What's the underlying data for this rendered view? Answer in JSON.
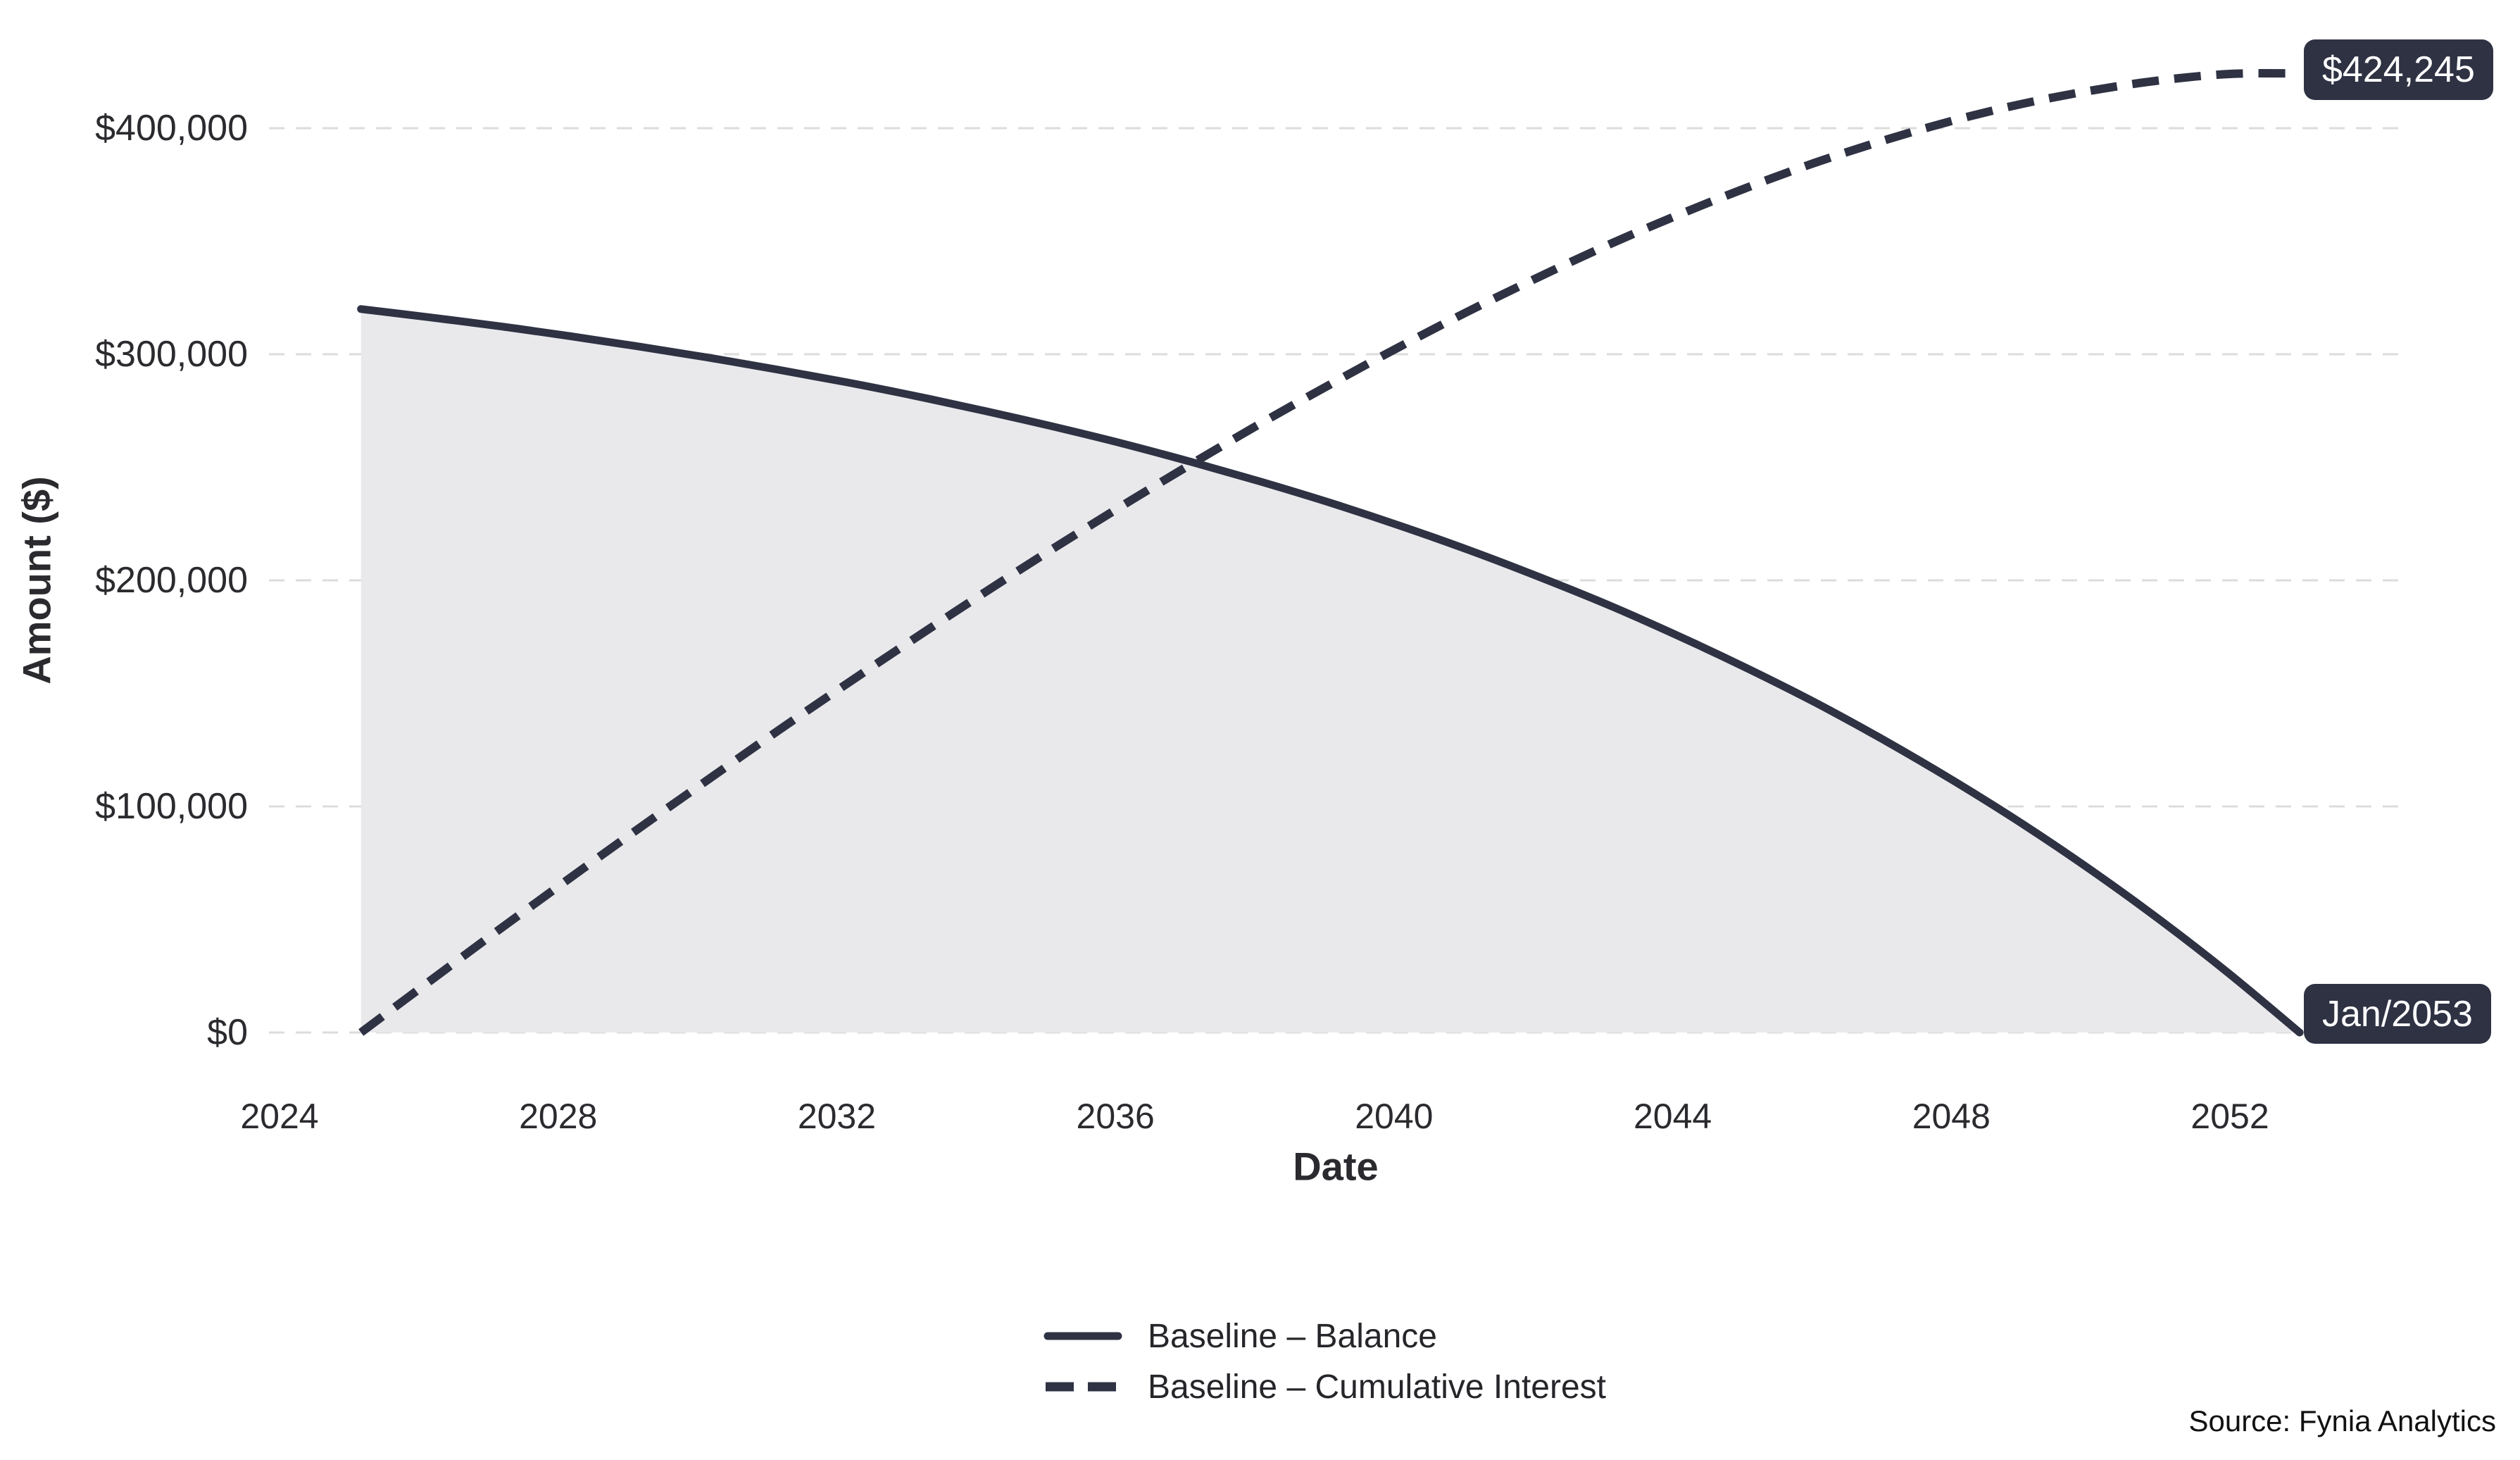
{
  "chart_data": {
    "type": "line",
    "title": "",
    "xlabel": "Date",
    "ylabel": "Amount ($)",
    "grid": "horizontal-dashed",
    "legend_position": "bottom-center",
    "x_ticks": [
      {
        "label": "2024",
        "year": 2024
      },
      {
        "label": "2028",
        "year": 2028
      },
      {
        "label": "2032",
        "year": 2032
      },
      {
        "label": "2036",
        "year": 2036
      },
      {
        "label": "2040",
        "year": 2040
      },
      {
        "label": "2044",
        "year": 2044
      },
      {
        "label": "2048",
        "year": 2048
      },
      {
        "label": "2052",
        "year": 2052
      }
    ],
    "y_ticks": [
      {
        "label": "$0",
        "value": 0
      },
      {
        "label": "$100,000",
        "value": 100000
      },
      {
        "label": "$200,000",
        "value": 200000
      },
      {
        "label": "$300,000",
        "value": 300000
      },
      {
        "label": "$400,000",
        "value": 400000
      }
    ],
    "y_range": [
      0,
      430000
    ],
    "x_range_years": [
      2023.8,
      2054.6
    ],
    "series": [
      {
        "name": "Baseline – Balance",
        "line_style": "solid",
        "area_fill": true,
        "x_start_year": 2025.17,
        "x_end_year": 2053.0,
        "values": [
          320000,
          316300,
          312400,
          308100,
          303500,
          298600,
          293300,
          287700,
          281600,
          275000,
          268000,
          260500,
          252300,
          243600,
          234300,
          224200,
          213400,
          201700,
          189300,
          175800,
          161400,
          146000,
          129300,
          111400,
          92200,
          71600,
          49400,
          25600,
          0
        ]
      },
      {
        "name": "Baseline – Cumulative Interest",
        "line_style": "dashed",
        "area_fill": false,
        "x_start_year": 2025.17,
        "x_end_year": 2053.0,
        "values": [
          0,
          22900,
          45600,
          67900,
          90000,
          111600,
          133000,
          153900,
          174400,
          194500,
          214100,
          233100,
          251600,
          269500,
          286700,
          303300,
          319100,
          334000,
          348200,
          361300,
          373500,
          384700,
          394600,
          403400,
          410800,
          416700,
          421200,
          424000,
          424245
        ]
      }
    ],
    "annotations": [
      {
        "text": "$424,245",
        "series": "Baseline – Cumulative Interest",
        "anchor_year": 2053.0,
        "anchor_value": 424245
      },
      {
        "text": "Jan/2053",
        "series": "Baseline – Balance",
        "anchor_year": 2053.0,
        "anchor_value": 0
      }
    ]
  },
  "source_note": "Source: Fynia Analytics",
  "colors": {
    "line": "#2e3243",
    "area_fill": "#e9e9ec",
    "grid": "#dcdcdd",
    "tick_text": "#2b2b2f",
    "annotation_bg": "#2e3243",
    "annotation_text": "#ffffff",
    "source_text": "#111111"
  }
}
